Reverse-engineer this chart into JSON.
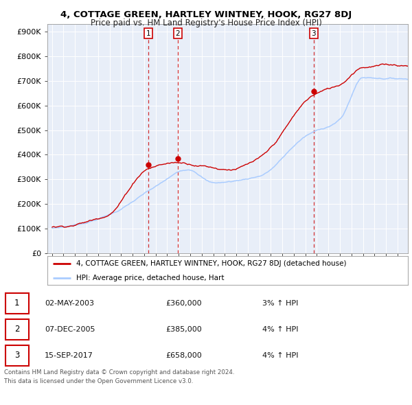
{
  "title": "4, COTTAGE GREEN, HARTLEY WINTNEY, HOOK, RG27 8DJ",
  "subtitle": "Price paid vs. HM Land Registry's House Price Index (HPI)",
  "yticks": [
    0,
    100000,
    200000,
    300000,
    400000,
    500000,
    600000,
    700000,
    800000,
    900000
  ],
  "ytick_labels": [
    "£0",
    "£100K",
    "£200K",
    "£300K",
    "£400K",
    "£500K",
    "£600K",
    "£700K",
    "£800K",
    "£900K"
  ],
  "ylim": [
    0,
    930000
  ],
  "sale_dates": [
    2003.37,
    2005.92,
    2017.71
  ],
  "sale_prices": [
    360000,
    385000,
    658000
  ],
  "sale_labels": [
    "1",
    "2",
    "3"
  ],
  "transactions": [
    {
      "num": "1",
      "date": "02-MAY-2003",
      "price": "£360,000",
      "change": "3%",
      "arrow": "↑",
      "vs": "HPI"
    },
    {
      "num": "2",
      "date": "07-DEC-2005",
      "price": "£385,000",
      "change": "4%",
      "arrow": "↑",
      "vs": "HPI"
    },
    {
      "num": "3",
      "date": "15-SEP-2017",
      "price": "£658,000",
      "change": "4%",
      "arrow": "↑",
      "vs": "HPI"
    }
  ],
  "legend_property": "4, COTTAGE GREEN, HARTLEY WINTNEY, HOOK, RG27 8DJ (detached house)",
  "legend_hpi": "HPI: Average price, detached house, Hart",
  "footer": "Contains HM Land Registry data © Crown copyright and database right 2024.\nThis data is licensed under the Open Government Licence v3.0.",
  "property_color": "#cc0000",
  "hpi_color": "#aaccff",
  "hpi_line_color": "#88aaee",
  "vline_color": "#cc0000",
  "background_color": "#e8eef8",
  "grid_color": "#ffffff",
  "xlim_left": 1994.6,
  "xlim_right": 2025.9
}
